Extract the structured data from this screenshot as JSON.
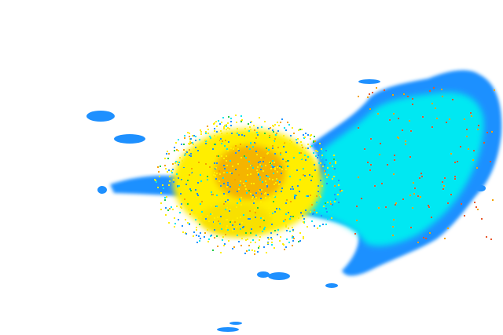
{
  "radar": {
    "palette": {
      "light": "#1e90ff",
      "cyan": "#00e5f0",
      "yellow": "#ffee00",
      "orange": "#f5a300",
      "red": "#e8552a",
      "green": "#22cc44",
      "background": "#ffffff"
    }
  }
}
